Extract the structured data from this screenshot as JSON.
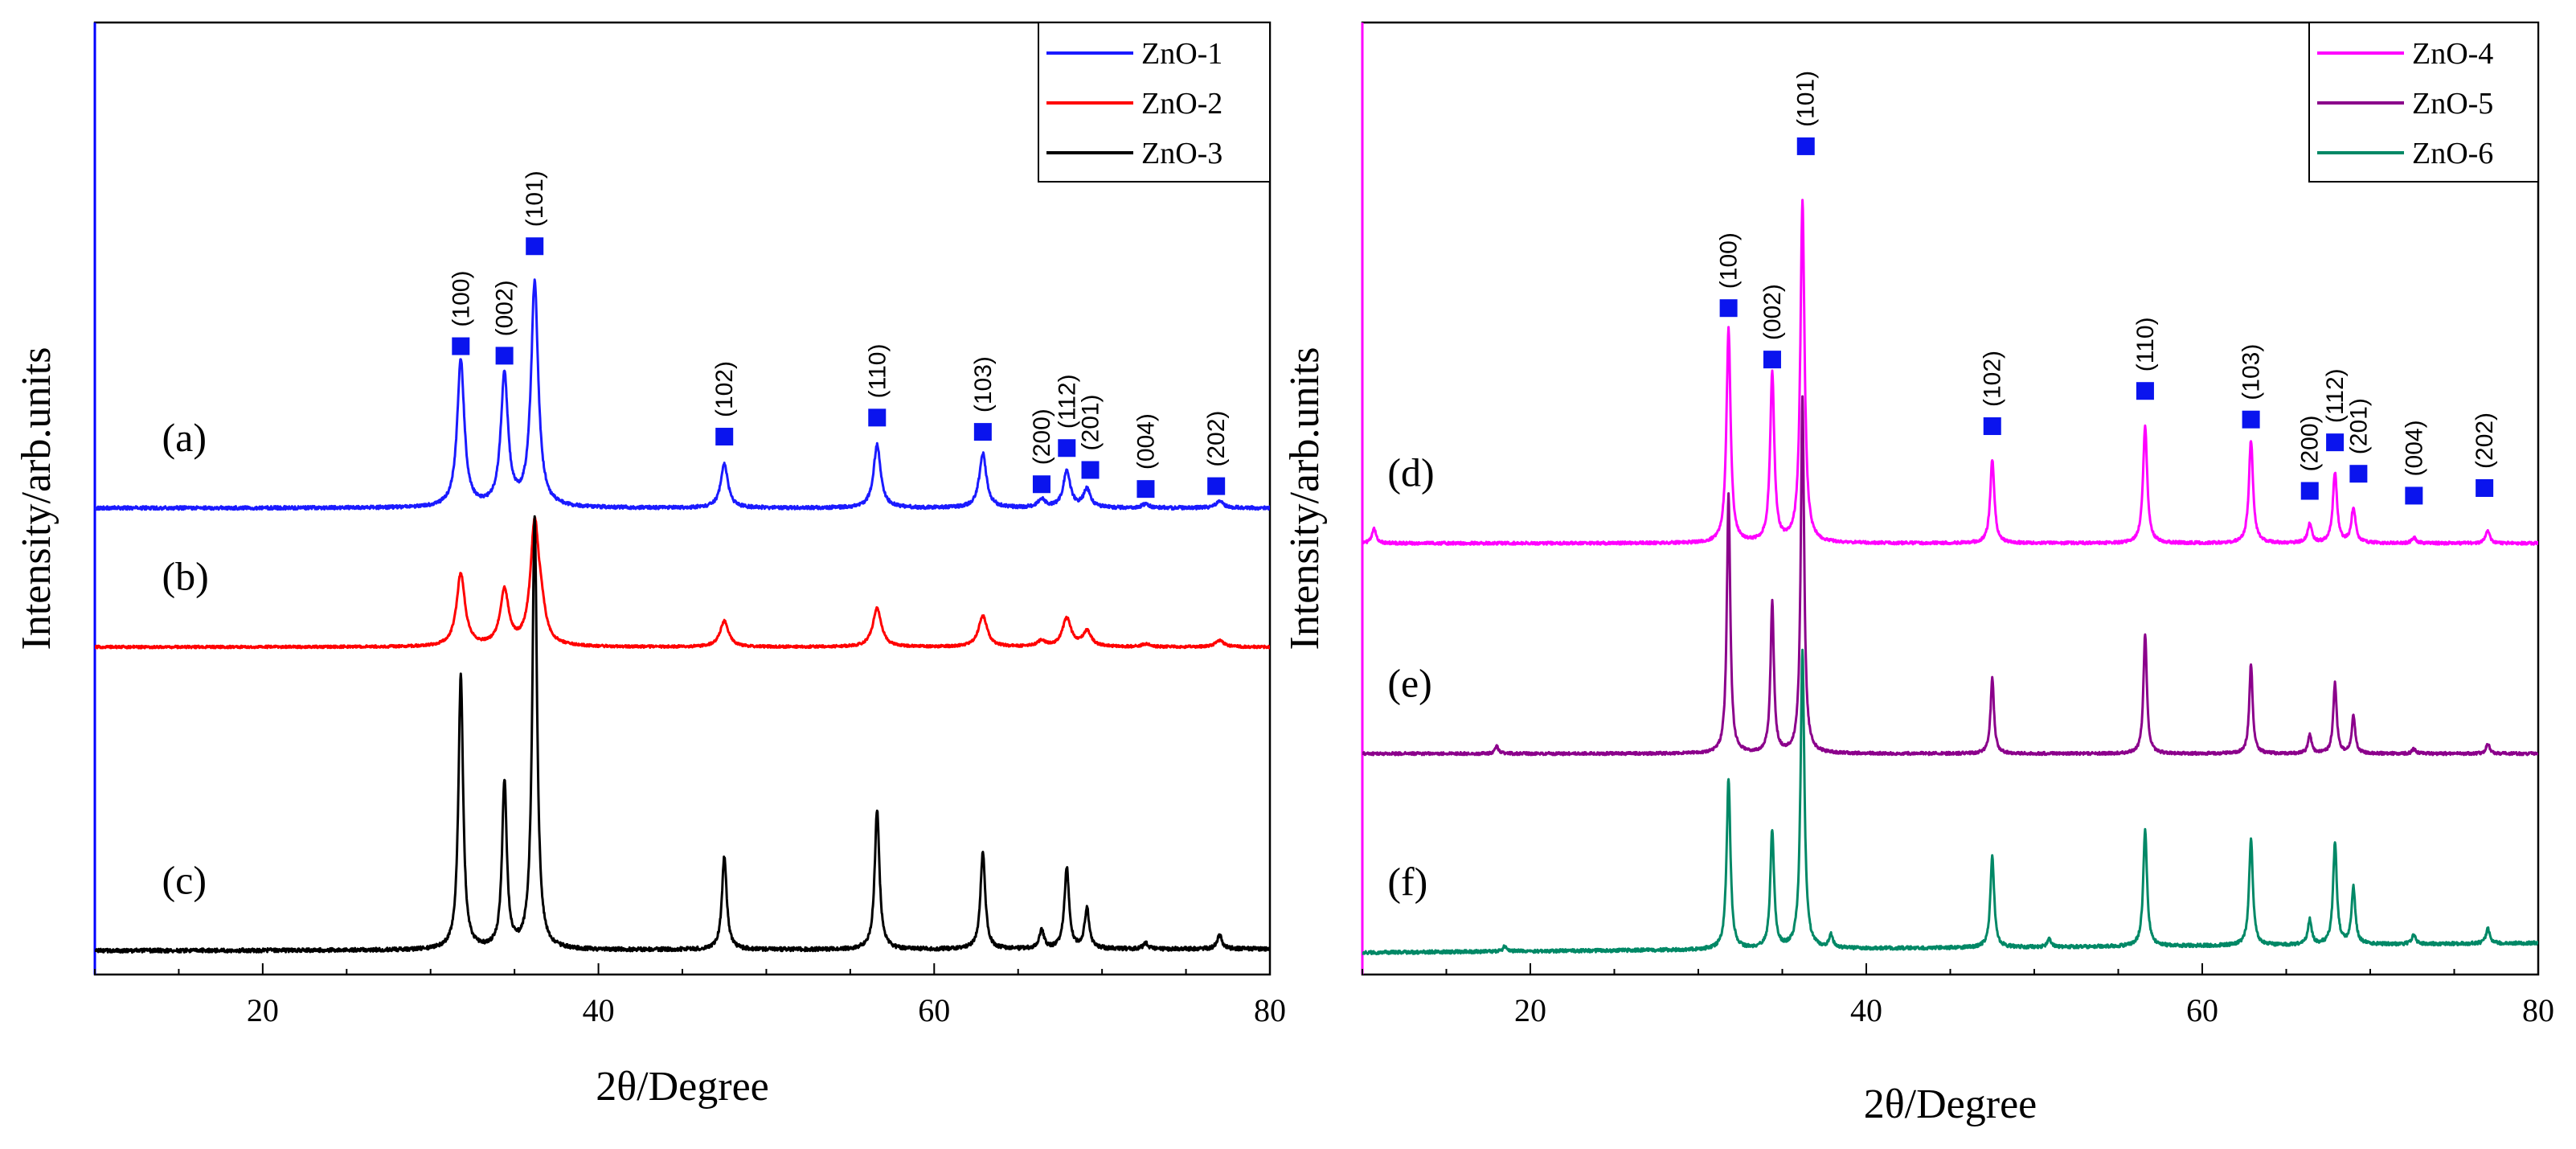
{
  "chart_data": [
    {
      "type": "line",
      "panel": "left",
      "xlabel": "2θ/Degree",
      "ylabel": "Intensity/arb.units",
      "xlim": [
        10,
        80
      ],
      "ylim": [
        0,
        100
      ],
      "xticks": [
        20,
        40,
        60,
        80
      ],
      "frame_color": "#0000ff",
      "legend": {
        "placement": "top-right",
        "entries": [
          {
            "name": "ZnO-1",
            "color": "#1a1aff"
          },
          {
            "name": "ZnO-2",
            "color": "#ff0000"
          },
          {
            "name": "ZnO-3",
            "color": "#000000"
          }
        ]
      },
      "series": [
        {
          "name": "ZnO-1",
          "label": "(a)",
          "label_x": 14,
          "color": "#1a1aff",
          "baseline": 49,
          "noise": 0.35,
          "width": 0.38,
          "peaks": [
            [
              31.8,
              15.4
            ],
            [
              34.4,
              13.8
            ],
            [
              36.2,
              23.5
            ],
            [
              47.5,
              4.6
            ],
            [
              56.6,
              6.6
            ],
            [
              62.9,
              5.7
            ],
            [
              66.4,
              0.9
            ],
            [
              67.9,
              3.8
            ],
            [
              69.1,
              1.9
            ],
            [
              72.6,
              0.4
            ],
            [
              77.0,
              0.8
            ]
          ]
        },
        {
          "name": "ZnO-2",
          "label": "(b)",
          "label_x": 14,
          "color": "#ff0000",
          "baseline": 34.4,
          "noise": 0.25,
          "width": 0.45,
          "peaks": [
            [
              31.8,
              7.6
            ],
            [
              34.4,
              5.8
            ],
            [
              36.2,
              12.5
            ],
            [
              36.6,
              2.5
            ],
            [
              47.5,
              2.7
            ],
            [
              56.6,
              4.1
            ],
            [
              62.9,
              3.3
            ],
            [
              66.4,
              0.6
            ],
            [
              67.9,
              3.0
            ],
            [
              69.1,
              1.6
            ],
            [
              72.6,
              0.3
            ],
            [
              77.0,
              0.7
            ]
          ]
        },
        {
          "name": "ZnO-3",
          "label": "(c)",
          "label_x": 14,
          "color": "#000000",
          "baseline": 2.5,
          "noise": 0.4,
          "width": 0.25,
          "slope_start": 2.5,
          "slope_end": 2.7,
          "peaks": [
            [
              31.8,
              28.8
            ],
            [
              34.4,
              17.5
            ],
            [
              36.2,
              45.5
            ],
            [
              47.5,
              9.8
            ],
            [
              56.6,
              14.7
            ],
            [
              62.9,
              10.2
            ],
            [
              66.4,
              2.0
            ],
            [
              67.9,
              8.5
            ],
            [
              69.1,
              4.2
            ],
            [
              72.6,
              0.6
            ],
            [
              77.0,
              1.5
            ]
          ]
        }
      ],
      "hkl_markers": [
        {
          "hkl": "(100)",
          "x": 31.8,
          "y": 66
        },
        {
          "hkl": "(002)",
          "x": 34.4,
          "y": 65
        },
        {
          "hkl": "(101)",
          "x": 36.2,
          "y": 76.5
        },
        {
          "hkl": "(102)",
          "x": 47.5,
          "y": 56.5
        },
        {
          "hkl": "(110)",
          "x": 56.6,
          "y": 58.5
        },
        {
          "hkl": "(103)",
          "x": 62.9,
          "y": 57
        },
        {
          "hkl": "(200)",
          "x": 66.4,
          "y": 51.5
        },
        {
          "hkl": "(112)",
          "x": 67.9,
          "y": 55.3
        },
        {
          "hkl": "(201)",
          "x": 69.3,
          "y": 53
        },
        {
          "hkl": "(004)",
          "x": 72.6,
          "y": 51
        },
        {
          "hkl": "(202)",
          "x": 76.8,
          "y": 51.3
        }
      ]
    },
    {
      "type": "line",
      "panel": "right",
      "xlabel": "2θ/Degree",
      "ylabel": "Intensity/arb.units",
      "xlim": [
        10,
        80
      ],
      "ylim": [
        0,
        100
      ],
      "xticks": [
        20,
        40,
        60,
        80
      ],
      "frame_color": "#ff00ff",
      "legend": {
        "placement": "top-right",
        "entries": [
          {
            "name": "ZnO-4",
            "color": "#ff00ff"
          },
          {
            "name": "ZnO-5",
            "color": "#8b008b"
          },
          {
            "name": "ZnO-6",
            "color": "#008866"
          }
        ]
      },
      "series": [
        {
          "name": "ZnO-4",
          "label": "(d)",
          "label_x": 11.5,
          "color": "#ff00ff",
          "baseline": 45.3,
          "noise": 0.3,
          "width": 0.22,
          "peaks": [
            [
              10.7,
              1.5
            ],
            [
              31.8,
              22.5
            ],
            [
              34.4,
              17.8
            ],
            [
              36.2,
              35.8
            ],
            [
              47.5,
              8.7
            ],
            [
              56.6,
              12.3
            ],
            [
              62.9,
              10.8
            ],
            [
              66.4,
              2.0
            ],
            [
              67.9,
              7.4
            ],
            [
              69.0,
              3.7
            ],
            [
              72.6,
              0.6
            ],
            [
              77.0,
              1.3
            ]
          ]
        },
        {
          "name": "ZnO-5",
          "label": "(e)",
          "label_x": 11.5,
          "color": "#8b008b",
          "baseline": 23.2,
          "noise": 0.3,
          "width": 0.18,
          "peaks": [
            [
              18.0,
              0.8
            ],
            [
              31.8,
              27.3
            ],
            [
              34.4,
              15.8
            ],
            [
              36.2,
              37.3
            ],
            [
              47.5,
              8.0
            ],
            [
              56.6,
              12.6
            ],
            [
              62.9,
              9.4
            ],
            [
              66.4,
              2.0
            ],
            [
              67.9,
              7.4
            ],
            [
              69.0,
              4.0
            ],
            [
              72.6,
              0.5
            ],
            [
              77.0,
              1.1
            ]
          ]
        },
        {
          "name": "ZnO-6",
          "label": "(f)",
          "label_x": 11.5,
          "color": "#008866",
          "baseline": 2.3,
          "noise": 0.35,
          "width": 0.2,
          "slope_start": 1.8,
          "slope_end": 2.8,
          "peaks": [
            [
              18.5,
              0.6
            ],
            [
              31.8,
              18.0
            ],
            [
              34.4,
              12.4
            ],
            [
              36.2,
              31.5
            ],
            [
              37.9,
              1.4
            ],
            [
              47.5,
              9.6
            ],
            [
              50.9,
              0.8
            ],
            [
              56.6,
              12.2
            ],
            [
              62.9,
              11.2
            ],
            [
              66.4,
              2.6
            ],
            [
              67.9,
              10.6
            ],
            [
              69.0,
              6.0
            ],
            [
              72.6,
              1.0
            ],
            [
              77.0,
              1.6
            ]
          ]
        }
      ],
      "hkl_markers": [
        {
          "hkl": "(100)",
          "x": 31.8,
          "y": 70
        },
        {
          "hkl": "(002)",
          "x": 34.4,
          "y": 64.6
        },
        {
          "hkl": "(101)",
          "x": 36.4,
          "y": 87
        },
        {
          "hkl": "(102)",
          "x": 47.5,
          "y": 57.6
        },
        {
          "hkl": "(110)",
          "x": 56.6,
          "y": 61.3
        },
        {
          "hkl": "(103)",
          "x": 62.9,
          "y": 58.3
        },
        {
          "hkl": "(200)",
          "x": 66.4,
          "y": 50.8
        },
        {
          "hkl": "(112)",
          "x": 67.9,
          "y": 55.9
        },
        {
          "hkl": "(201)",
          "x": 69.3,
          "y": 52.6
        },
        {
          "hkl": "(004)",
          "x": 72.6,
          "y": 50.3
        },
        {
          "hkl": "(202)",
          "x": 76.8,
          "y": 51.1
        }
      ]
    }
  ]
}
